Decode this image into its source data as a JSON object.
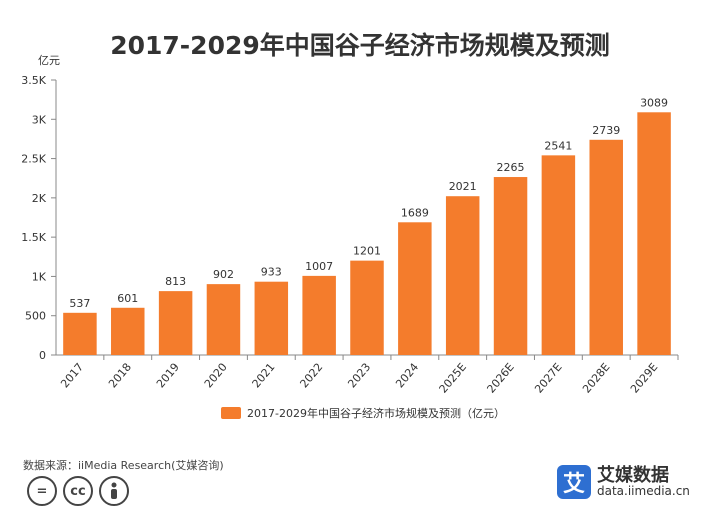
{
  "title": "2017-2029年中国谷子经济市场规模及预测",
  "colors": {
    "bar": "#f47c2c",
    "axis": "#888888",
    "text": "#333333"
  },
  "chart_data": {
    "type": "bar",
    "title": "2017-2029年中国谷子经济市场规模及预测",
    "ylabel": "亿元",
    "categories": [
      "2017",
      "2018",
      "2019",
      "2020",
      "2021",
      "2022",
      "2023",
      "2024",
      "2025E",
      "2026E",
      "2027E",
      "2028E",
      "2029E"
    ],
    "series": [
      {
        "name": "2017-2029年中国谷子经济市场规模及预测（亿元）",
        "values": [
          537,
          601,
          813,
          902,
          933,
          1007,
          1201,
          1689,
          2021,
          2265,
          2541,
          2739,
          3089
        ]
      }
    ],
    "ylim": [
      0,
      3500
    ],
    "yticks": [
      0,
      500,
      1000,
      1500,
      2000,
      2500,
      3000,
      3500
    ],
    "ytick_labels": [
      "0",
      "500",
      "1K",
      "1.5K",
      "2K",
      "2.5K",
      "3K",
      "3.5K"
    ],
    "grid": false,
    "legend_position": "bottom"
  },
  "source": "数据来源：iiMedia Research(艾媒咨询)",
  "license_icons": [
    "=",
    "cc",
    "person-icon"
  ],
  "logo": {
    "icon_char": "艾",
    "brand": "艾媒数据",
    "url": "data.iimedia.cn"
  }
}
